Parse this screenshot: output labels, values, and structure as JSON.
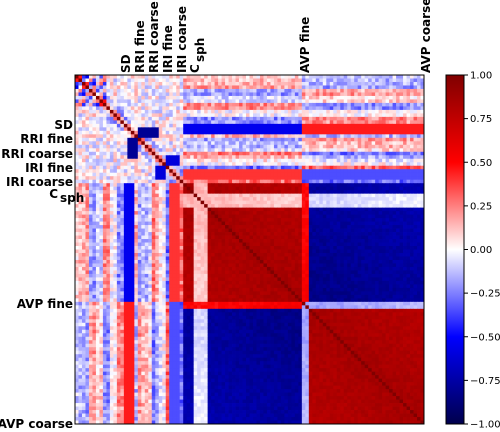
{
  "chart_data": {
    "type": "heatmap",
    "title": "",
    "xlabel": "",
    "ylabel": "",
    "blocks": [
      {
        "name": "SD",
        "label": "SD"
      },
      {
        "name": "RRI fine",
        "label": "RRI fine"
      },
      {
        "name": "RRI coarse",
        "label": "RRI coarse"
      },
      {
        "name": "IRI fine",
        "label": "IRI fine"
      },
      {
        "name": "IRI coarse",
        "label": "IRI coarse"
      },
      {
        "name": "Csph",
        "label": "C",
        "label_sub": "sph"
      },
      {
        "name": "AVP fine",
        "label": "AVP fine"
      },
      {
        "name": "AVP coarse",
        "label": "AVP coarse"
      }
    ],
    "colorbar": {
      "colormap": "seismic",
      "range": [
        -1.0,
        1.0
      ],
      "ticks": [
        "1.00",
        "0.75",
        "0.50",
        "0.25",
        "0.00",
        "−0.25",
        "−0.50",
        "−0.75",
        "−1.00"
      ],
      "tick_values": [
        1.0,
        0.75,
        0.5,
        0.25,
        0.0,
        -0.25,
        -0.5,
        -0.75,
        -1.0
      ]
    },
    "approx_block_correlations": {
      "Csph_Csph": 0.85,
      "Csph_AVP": -0.85,
      "AVPfine_AVPfine": 0.85,
      "AVPcoarse_AVPcoarse": 0.85,
      "AVPfine_AVPcoarse": 0.8,
      "diagonal": 1.0
    }
  }
}
